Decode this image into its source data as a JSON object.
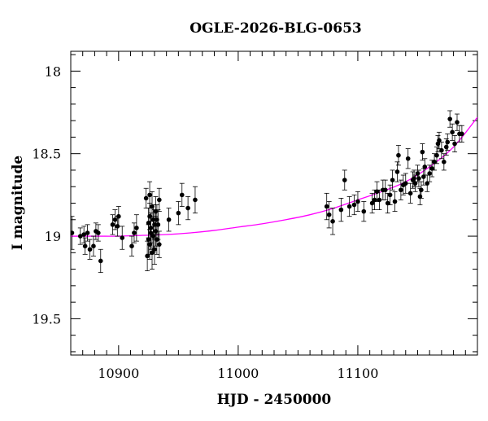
{
  "chart_data": {
    "type": "scatter",
    "title": "OGLE-2026-BLG-0653",
    "xlabel": "HJD - 2450000",
    "ylabel": "I magnitude",
    "xlim": [
      10860,
      11200
    ],
    "ylim": [
      19.72,
      17.88
    ],
    "y_inverted": true,
    "x_ticks": [
      10900,
      11000,
      11100
    ],
    "y_ticks": [
      "18",
      "18.5",
      "19",
      "19.5"
    ],
    "grid": false,
    "marker_color": "#000000",
    "model_color": "#ff00ff",
    "series": [
      {
        "points": [
          {
            "x": 10861,
            "y": 18.98,
            "err": 0.1
          },
          {
            "x": 10868,
            "y": 19.0,
            "err": 0.05
          },
          {
            "x": 10871,
            "y": 18.99,
            "err": 0.05
          },
          {
            "x": 10872,
            "y": 19.06,
            "err": 0.05
          },
          {
            "x": 10874,
            "y": 18.98,
            "err": 0.05
          },
          {
            "x": 10876,
            "y": 19.08,
            "err": 0.06
          },
          {
            "x": 10879,
            "y": 19.06,
            "err": 0.06
          },
          {
            "x": 10881,
            "y": 18.97,
            "err": 0.05
          },
          {
            "x": 10883,
            "y": 18.98,
            "err": 0.05
          },
          {
            "x": 10885,
            "y": 19.15,
            "err": 0.07
          },
          {
            "x": 10895,
            "y": 18.93,
            "err": 0.06
          },
          {
            "x": 10897,
            "y": 18.9,
            "err": 0.06
          },
          {
            "x": 10899,
            "y": 18.94,
            "err": 0.06
          },
          {
            "x": 10900,
            "y": 18.88,
            "err": 0.06
          },
          {
            "x": 10903,
            "y": 19.01,
            "err": 0.07
          },
          {
            "x": 10911,
            "y": 19.06,
            "err": 0.06
          },
          {
            "x": 10913,
            "y": 18.98,
            "err": 0.06
          },
          {
            "x": 10915,
            "y": 18.95,
            "err": 0.08
          },
          {
            "x": 10923,
            "y": 18.77,
            "err": 0.06
          },
          {
            "x": 10924,
            "y": 19.12,
            "err": 0.09
          },
          {
            "x": 10925,
            "y": 18.92,
            "err": 0.09
          },
          {
            "x": 10925,
            "y": 19.02,
            "err": 0.09
          },
          {
            "x": 10926,
            "y": 18.75,
            "err": 0.08
          },
          {
            "x": 10926,
            "y": 18.88,
            "err": 0.08
          },
          {
            "x": 10926,
            "y": 19.05,
            "err": 0.09
          },
          {
            "x": 10927,
            "y": 18.95,
            "err": 0.09
          },
          {
            "x": 10927,
            "y": 18.98,
            "err": 0.1
          },
          {
            "x": 10928,
            "y": 18.82,
            "err": 0.09
          },
          {
            "x": 10928,
            "y": 19.1,
            "err": 0.1
          },
          {
            "x": 10929,
            "y": 18.9,
            "err": 0.09
          },
          {
            "x": 10929,
            "y": 19.0,
            "err": 0.1
          },
          {
            "x": 10930,
            "y": 18.93,
            "err": 0.09
          },
          {
            "x": 10930,
            "y": 19.08,
            "err": 0.09
          },
          {
            "x": 10931,
            "y": 18.85,
            "err": 0.09
          },
          {
            "x": 10931,
            "y": 18.97,
            "err": 0.09
          },
          {
            "x": 10932,
            "y": 19.02,
            "err": 0.09
          },
          {
            "x": 10932,
            "y": 18.9,
            "err": 0.09
          },
          {
            "x": 10933,
            "y": 18.93,
            "err": 0.09
          },
          {
            "x": 10934,
            "y": 18.78,
            "err": 0.07
          },
          {
            "x": 10934,
            "y": 19.05,
            "err": 0.08
          },
          {
            "x": 10942,
            "y": 18.9,
            "err": 0.07
          },
          {
            "x": 10950,
            "y": 18.86,
            "err": 0.07
          },
          {
            "x": 10953,
            "y": 18.75,
            "err": 0.07
          },
          {
            "x": 10958,
            "y": 18.83,
            "err": 0.07
          },
          {
            "x": 10964,
            "y": 18.78,
            "err": 0.08
          },
          {
            "x": 11074,
            "y": 18.82,
            "err": 0.08
          },
          {
            "x": 11076,
            "y": 18.87,
            "err": 0.08
          },
          {
            "x": 11079,
            "y": 18.91,
            "err": 0.08
          },
          {
            "x": 11086,
            "y": 18.84,
            "err": 0.07
          },
          {
            "x": 11089,
            "y": 18.66,
            "err": 0.06
          },
          {
            "x": 11093,
            "y": 18.82,
            "err": 0.06
          },
          {
            "x": 11097,
            "y": 18.81,
            "err": 0.06
          },
          {
            "x": 11100,
            "y": 18.79,
            "err": 0.06
          },
          {
            "x": 11105,
            "y": 18.85,
            "err": 0.06
          },
          {
            "x": 11112,
            "y": 18.8,
            "err": 0.06
          },
          {
            "x": 11114,
            "y": 18.78,
            "err": 0.06
          },
          {
            "x": 11116,
            "y": 18.73,
            "err": 0.06
          },
          {
            "x": 11118,
            "y": 18.78,
            "err": 0.06
          },
          {
            "x": 11121,
            "y": 18.72,
            "err": 0.06
          },
          {
            "x": 11123,
            "y": 18.72,
            "err": 0.06
          },
          {
            "x": 11125,
            "y": 18.8,
            "err": 0.06
          },
          {
            "x": 11127,
            "y": 18.75,
            "err": 0.06
          },
          {
            "x": 11129,
            "y": 18.66,
            "err": 0.06
          },
          {
            "x": 11131,
            "y": 18.79,
            "err": 0.06
          },
          {
            "x": 11133,
            "y": 18.61,
            "err": 0.06
          },
          {
            "x": 11134,
            "y": 18.51,
            "err": 0.06
          },
          {
            "x": 11136,
            "y": 18.72,
            "err": 0.06
          },
          {
            "x": 11138,
            "y": 18.69,
            "err": 0.06
          },
          {
            "x": 11140,
            "y": 18.68,
            "err": 0.06
          },
          {
            "x": 11142,
            "y": 18.53,
            "err": 0.06
          },
          {
            "x": 11144,
            "y": 18.74,
            "err": 0.06
          },
          {
            "x": 11146,
            "y": 18.66,
            "err": 0.05
          },
          {
            "x": 11147,
            "y": 18.65,
            "err": 0.05
          },
          {
            "x": 11148,
            "y": 18.68,
            "err": 0.05
          },
          {
            "x": 11150,
            "y": 18.62,
            "err": 0.05
          },
          {
            "x": 11151,
            "y": 18.65,
            "err": 0.05
          },
          {
            "x": 11152,
            "y": 18.76,
            "err": 0.05
          },
          {
            "x": 11153,
            "y": 18.72,
            "err": 0.05
          },
          {
            "x": 11154,
            "y": 18.49,
            "err": 0.05
          },
          {
            "x": 11155,
            "y": 18.64,
            "err": 0.05
          },
          {
            "x": 11156,
            "y": 18.58,
            "err": 0.05
          },
          {
            "x": 11158,
            "y": 18.68,
            "err": 0.05
          },
          {
            "x": 11160,
            "y": 18.62,
            "err": 0.05
          },
          {
            "x": 11162,
            "y": 18.59,
            "err": 0.05
          },
          {
            "x": 11164,
            "y": 18.55,
            "err": 0.05
          },
          {
            "x": 11166,
            "y": 18.51,
            "err": 0.05
          },
          {
            "x": 11167,
            "y": 18.44,
            "err": 0.05
          },
          {
            "x": 11168,
            "y": 18.42,
            "err": 0.05
          },
          {
            "x": 11170,
            "y": 18.48,
            "err": 0.05
          },
          {
            "x": 11172,
            "y": 18.55,
            "err": 0.05
          },
          {
            "x": 11174,
            "y": 18.46,
            "err": 0.05
          },
          {
            "x": 11175,
            "y": 18.43,
            "err": 0.05
          },
          {
            "x": 11177,
            "y": 18.29,
            "err": 0.05
          },
          {
            "x": 11179,
            "y": 18.37,
            "err": 0.05
          },
          {
            "x": 11181,
            "y": 18.44,
            "err": 0.05
          },
          {
            "x": 11183,
            "y": 18.31,
            "err": 0.05
          },
          {
            "x": 11185,
            "y": 18.38,
            "err": 0.05
          },
          {
            "x": 11187,
            "y": 18.38,
            "err": 0.05
          }
        ]
      }
    ],
    "model_curve": {
      "x": [
        10860,
        10880,
        10900,
        10920,
        10940,
        10960,
        10980,
        11000,
        11020,
        11040,
        11060,
        11080,
        11100,
        11120,
        11140,
        11160,
        11180,
        11200
      ],
      "y": [
        19.0,
        19.0,
        19.0,
        18.995,
        18.99,
        18.98,
        18.965,
        18.945,
        18.925,
        18.9,
        18.87,
        18.83,
        18.78,
        18.73,
        18.67,
        18.58,
        18.46,
        18.28
      ]
    }
  }
}
